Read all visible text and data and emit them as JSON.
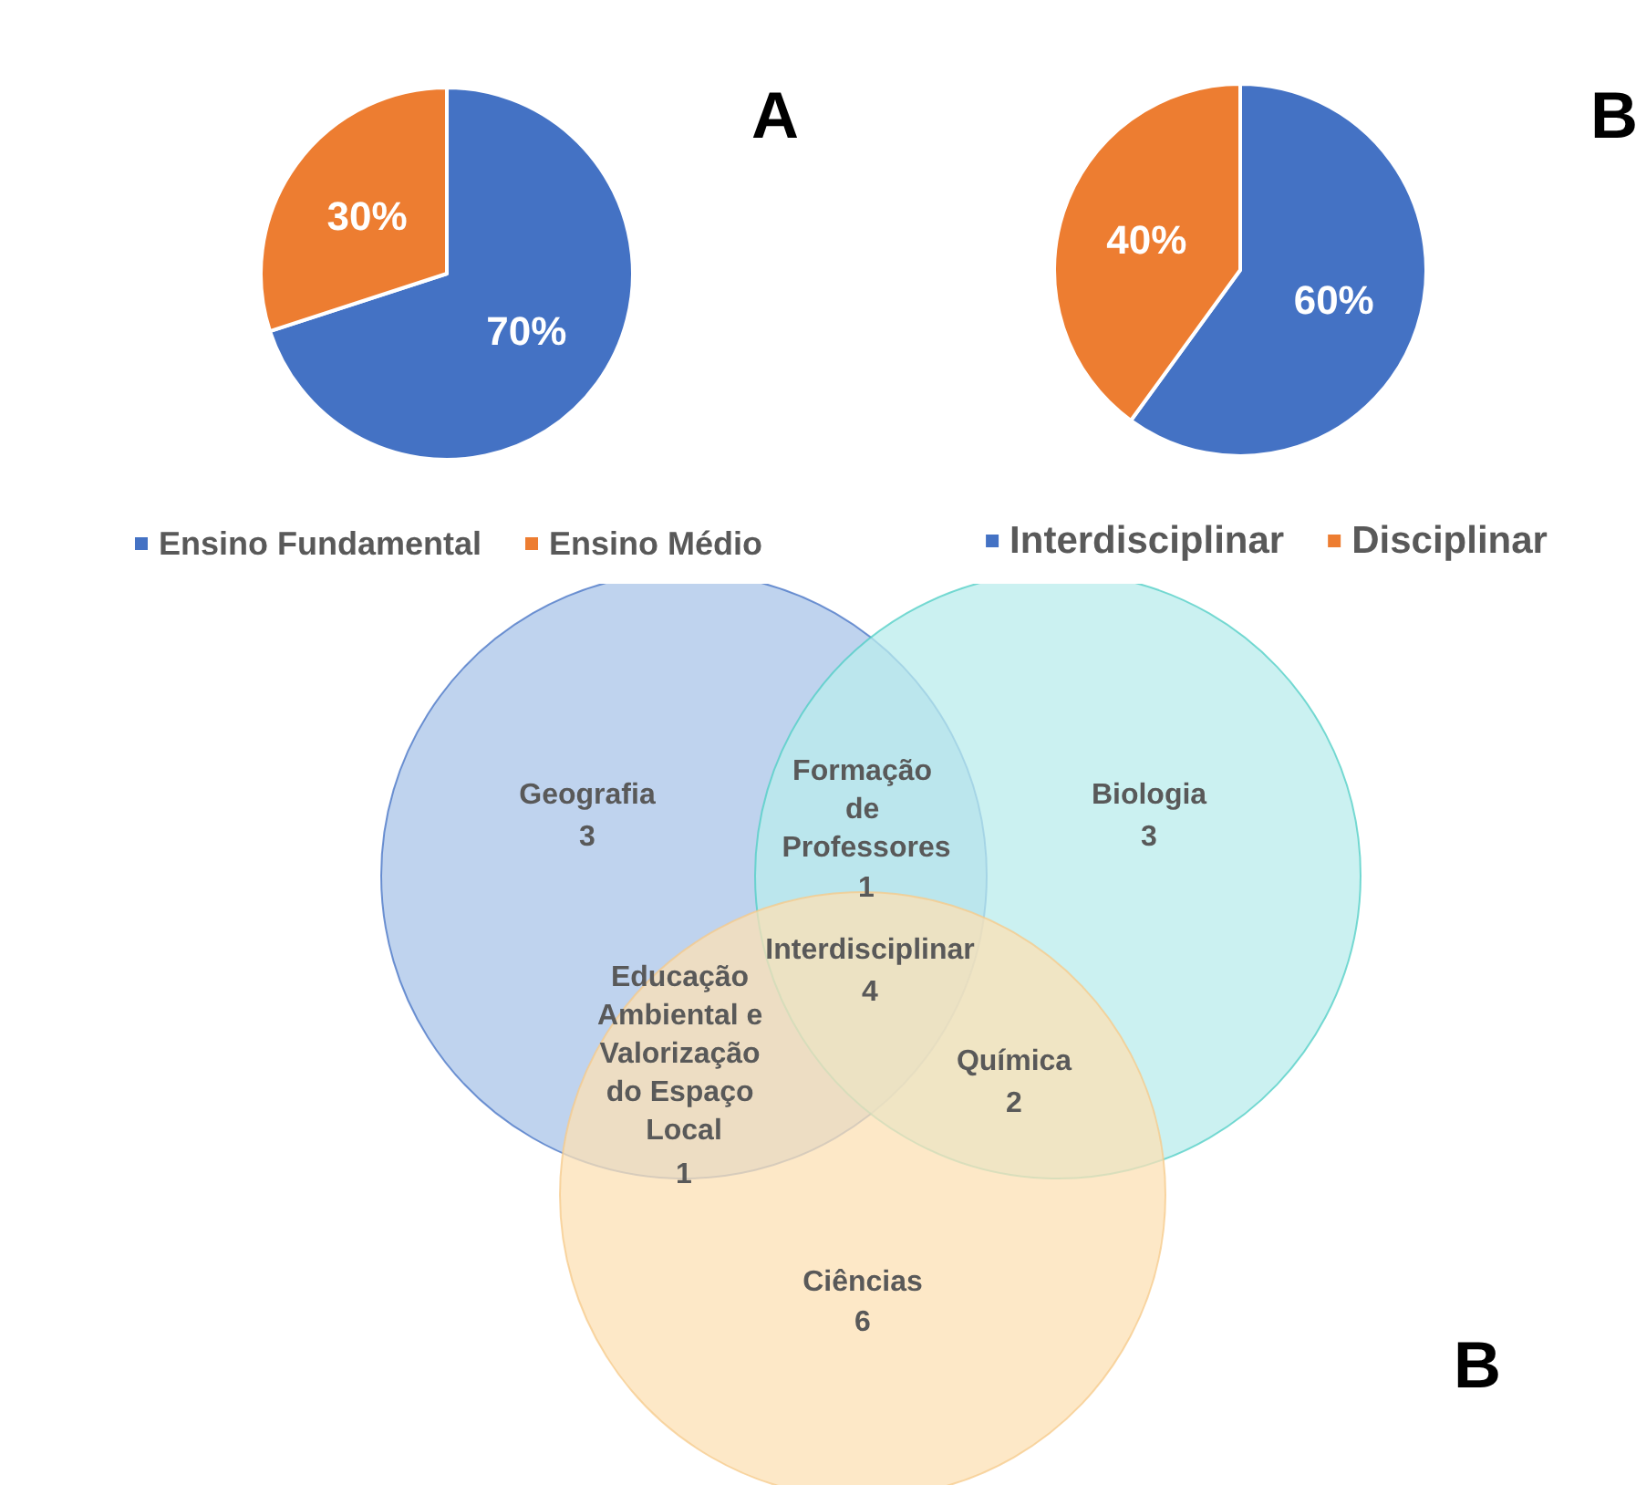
{
  "chart_data": [
    {
      "type": "pie",
      "title": "A",
      "categories": [
        "Ensino Fundamental",
        "Ensino Médio"
      ],
      "values": [
        70,
        30
      ],
      "colors": [
        "#4472c4",
        "#ed7d31"
      ],
      "legend": "bottom",
      "value_labels": [
        "70%",
        "30%"
      ]
    },
    {
      "type": "pie",
      "title": "B",
      "categories": [
        "Interdisciplinar",
        "Disciplinar"
      ],
      "values": [
        60,
        40
      ],
      "colors": [
        "#4472c4",
        "#ed7d31"
      ],
      "legend": "bottom",
      "value_labels": [
        "60%",
        "40%"
      ]
    },
    {
      "type": "other",
      "title": "B",
      "data_labels": true,
      "categories": [
        "Geografia",
        "Biologia",
        "Formação de Professores",
        "Interdisciplinar",
        "Educação Ambiental e Valorização do Espaço Local",
        "Química",
        "Ciências"
      ],
      "values": [
        3,
        3,
        1,
        4,
        1,
        2,
        6
      ]
    }
  ]
}
